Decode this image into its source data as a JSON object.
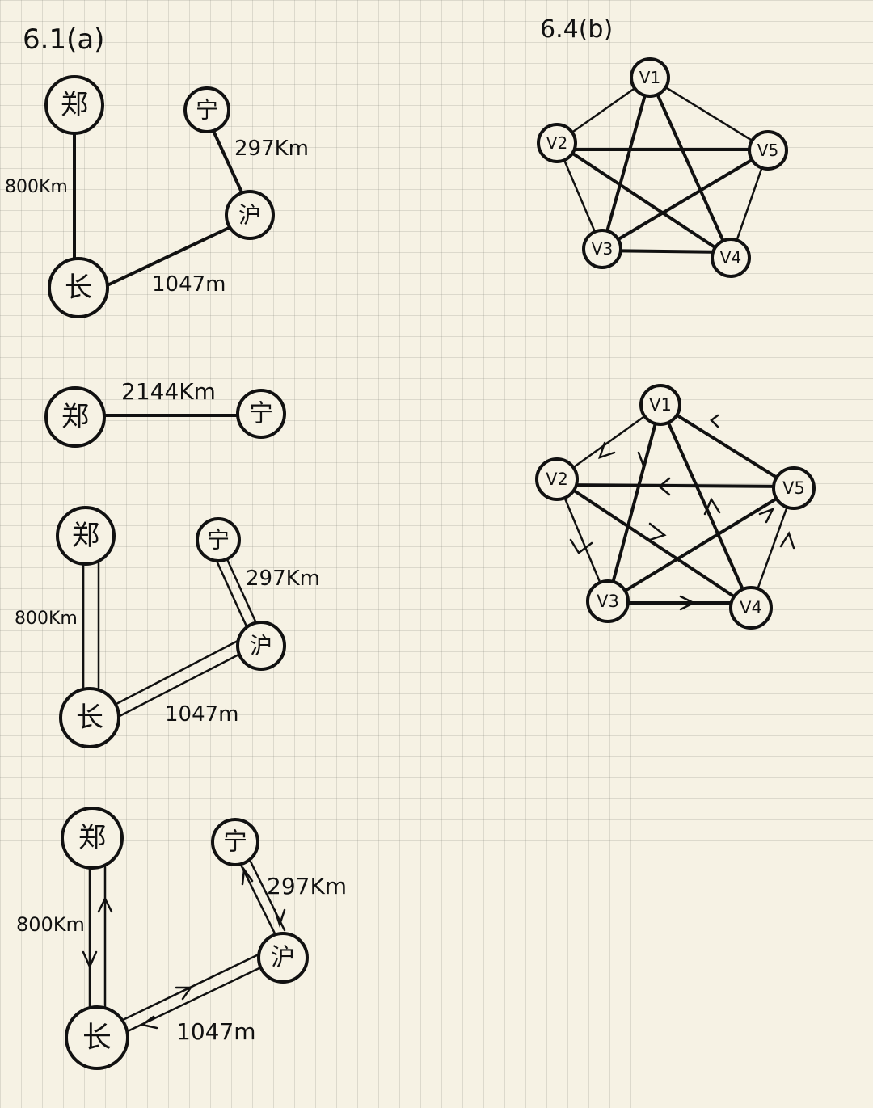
{
  "headings": {
    "left": "6.1(a)",
    "right": "6.4(b)"
  },
  "cities": {
    "zheng": "郑",
    "ning": "宁",
    "hu": "沪",
    "chang": "长"
  },
  "distances": {
    "zheng_chang": "800Km",
    "ning_hu": "297Km",
    "chang_hu": "1047m",
    "zheng_ning": "2144Km"
  },
  "vertices": {
    "v1": "V1",
    "v2": "V2",
    "v3": "V3",
    "v4": "V4",
    "v5": "V5"
  }
}
